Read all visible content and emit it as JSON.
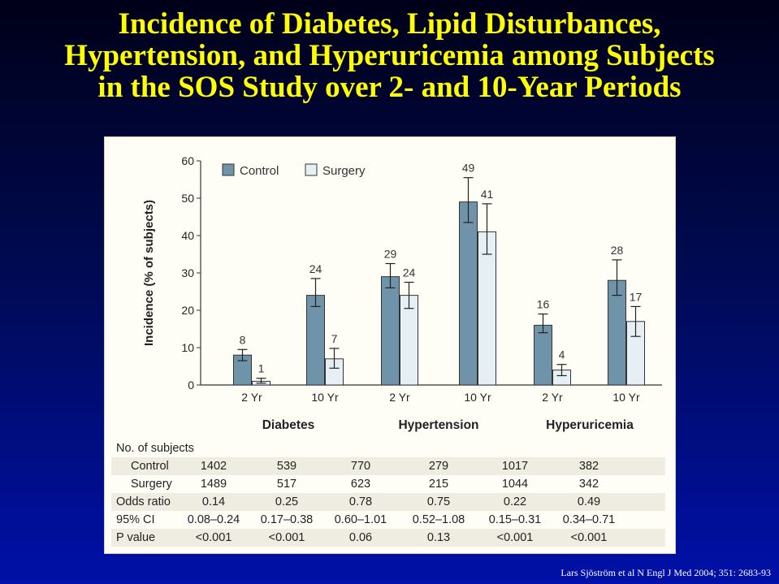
{
  "title": {
    "lines": [
      "Incidence of Diabetes, Lipid Disturbances,",
      "Hypertension, and Hyperuricemia among Subjects",
      "in the SOS Study over 2- and 10-Year Periods"
    ]
  },
  "colors": {
    "background": "#000a50",
    "title": "#ffff00",
    "control_bar": "#6f93a8",
    "surgery_bar": "#e6f0f4",
    "panel": "#fffef6"
  },
  "chart_data": {
    "type": "bar",
    "ylabel": "Incidence (% of subjects)",
    "ylim": [
      0,
      60
    ],
    "yticks": [
      0,
      10,
      20,
      30,
      40,
      50,
      60
    ],
    "legend": {
      "placement": "top-left",
      "entries": [
        "Control",
        "Surgery"
      ]
    },
    "categories": [
      "2 Yr",
      "10 Yr",
      "2 Yr",
      "10 Yr",
      "2 Yr",
      "10 Yr"
    ],
    "groups": [
      "Diabetes",
      "Hypertension",
      "Hyperuricemia"
    ],
    "series": [
      {
        "name": "Control",
        "values": [
          8,
          24,
          29,
          49,
          16,
          28
        ],
        "labels": [
          "8",
          "24",
          "29",
          "49",
          "16",
          "28"
        ],
        "error_low": [
          6.5,
          21,
          26,
          43.5,
          14,
          24
        ],
        "error_high": [
          9.5,
          28.5,
          32.5,
          55.5,
          19,
          33.5
        ]
      },
      {
        "name": "Surgery",
        "values": [
          1,
          7,
          24,
          41,
          4,
          17
        ],
        "labels": [
          "1",
          "7",
          "24",
          "41",
          "4",
          "17"
        ],
        "error_low": [
          0.5,
          4.5,
          20.5,
          35,
          2.5,
          13
        ],
        "error_high": [
          1.8,
          9.8,
          27.5,
          48.5,
          5.5,
          21
        ]
      }
    ]
  },
  "table": {
    "header": "No. of subjects",
    "rows": [
      {
        "label": "Control",
        "indent": true,
        "values": [
          "1402",
          "539",
          "770",
          "279",
          "1017",
          "382"
        ]
      },
      {
        "label": "Surgery",
        "indent": true,
        "values": [
          "1489",
          "517",
          "623",
          "215",
          "1044",
          "342"
        ]
      },
      {
        "label": "Odds ratio",
        "indent": false,
        "values": [
          "0.14",
          "0.25",
          "0.78",
          "0.75",
          "0.22",
          "0.49"
        ]
      },
      {
        "label": "95% CI",
        "indent": false,
        "values": [
          "0.08–0.24",
          "0.17–0.38",
          "0.60–1.01",
          "0.52–1.08",
          "0.15–0.31",
          "0.34–0.71"
        ]
      },
      {
        "label": "P value",
        "indent": false,
        "values": [
          "<0.001",
          "<0.001",
          "0.06",
          "0.13",
          "<0.001",
          "<0.001"
        ]
      }
    ]
  },
  "citation": "Lars Sjöström et al N Engl J Med 2004; 351: 2683-93"
}
